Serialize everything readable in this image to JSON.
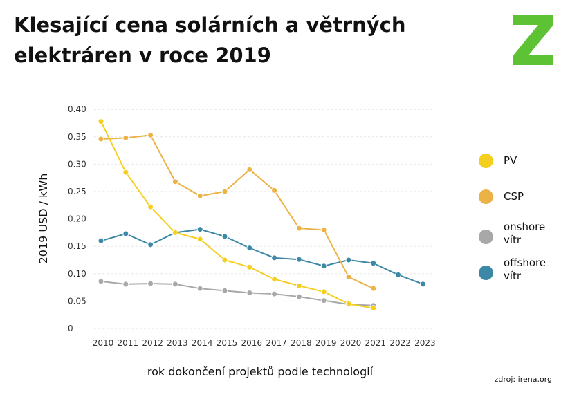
{
  "header": {
    "title": "Klesající cena solárních a větrných elektráren v roce 2019"
  },
  "logo": {
    "text": "Z",
    "color": "#5dc234"
  },
  "source": "zdroj: irena.org",
  "chart_data": {
    "type": "line",
    "title": "Klesající cena solárních a větrných elektráren v roce 2019",
    "xlabel": "rok dokončení projektů podle technologií",
    "ylabel": "2019 USD / kWh",
    "x": [
      2010,
      2011,
      2012,
      2013,
      2014,
      2015,
      2016,
      2017,
      2018,
      2019,
      2020,
      2021,
      2022,
      2023
    ],
    "xticks": [
      "2010",
      "2011",
      "2012",
      "2013",
      "2014",
      "2015",
      "2016",
      "2017",
      "2018",
      "2019",
      "2020",
      "2021",
      "2022",
      "2023"
    ],
    "ylim": [
      0,
      0.4
    ],
    "yticks": [
      0,
      0.05,
      0.1,
      0.15,
      0.2,
      0.25,
      0.3,
      0.35,
      0.4
    ],
    "yticklabels": [
      "0",
      "0.05",
      "0.10",
      "0.15",
      "0.20",
      "0.25",
      "0.30",
      "0.35",
      "0.40"
    ],
    "grid": true,
    "legend_position": "right",
    "series": [
      {
        "name": "PV",
        "color": "#f5cf1e",
        "values": [
          0.378,
          0.285,
          0.222,
          0.175,
          0.163,
          0.125,
          0.112,
          0.09,
          0.078,
          0.067,
          0.045,
          0.037,
          null,
          null
        ]
      },
      {
        "name": "CSP",
        "color": "#ebb245",
        "values": [
          0.346,
          0.348,
          0.353,
          0.268,
          0.242,
          0.25,
          0.29,
          0.252,
          0.183,
          0.18,
          0.094,
          0.073,
          null,
          null
        ]
      },
      {
        "name": "onshore vítr",
        "color": "#a8a8a8",
        "values": [
          0.086,
          0.081,
          0.082,
          0.081,
          0.073,
          0.069,
          0.065,
          0.063,
          0.058,
          0.051,
          0.044,
          0.042,
          null,
          null
        ]
      },
      {
        "name": "offshore vítr",
        "color": "#3c88a6",
        "values": [
          0.16,
          0.173,
          0.153,
          0.175,
          0.181,
          0.168,
          0.147,
          0.129,
          0.126,
          0.114,
          0.125,
          0.119,
          0.098,
          0.081
        ]
      }
    ]
  }
}
